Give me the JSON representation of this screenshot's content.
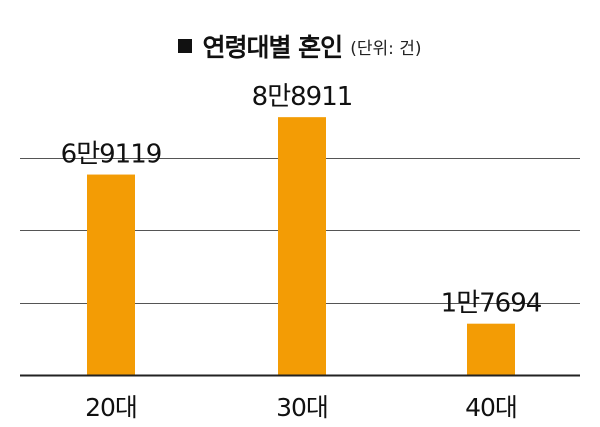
{
  "chart_data": {
    "type": "bar",
    "title": "연령대별 혼인",
    "unit": "(단위: 건)",
    "categories": [
      "20대",
      "30대",
      "40대"
    ],
    "values": [
      69119,
      88911,
      17694
    ],
    "value_labels": [
      "6만9119",
      "8만8911",
      "1만7694"
    ],
    "ylim": [
      0,
      100000
    ],
    "grid": true,
    "legend": "none",
    "xlabel": "",
    "ylabel": ""
  },
  "colors": {
    "bar": "#F39C05",
    "grid": "#555555",
    "axis": "#222222",
    "text": "#111111"
  }
}
